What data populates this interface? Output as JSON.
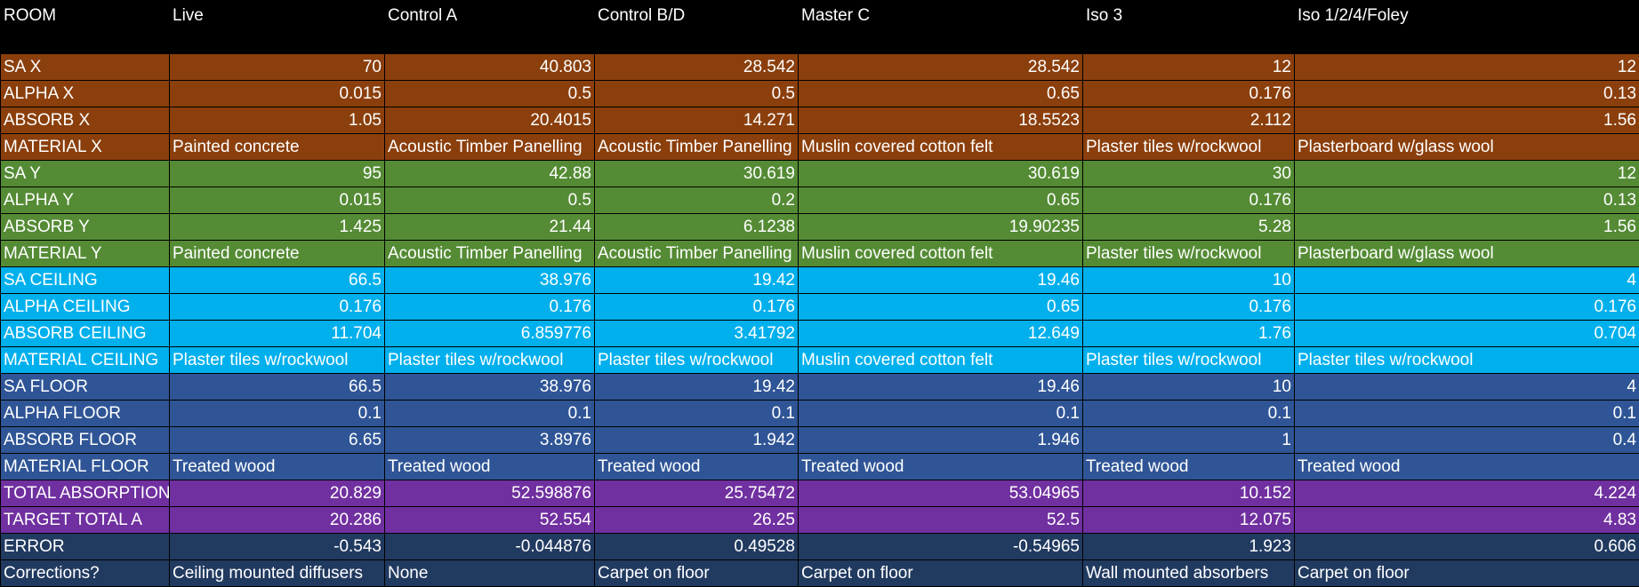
{
  "colors": {
    "header": "#000000",
    "x": "#8b3f0c",
    "y": "#548b34",
    "ceiling": "#00b0ed",
    "floor": "#2f5596",
    "total": "#7030a0",
    "error": "#213a60"
  },
  "header": [
    "ROOM",
    "Live",
    "Control A",
    "Control B/D",
    "Master C",
    "Iso 3",
    "Iso 1/2/4/Foley"
  ],
  "rows": [
    {
      "label": "SA X",
      "group": "x",
      "kind": "num",
      "cells": [
        "70",
        "40.803",
        "28.542",
        "28.542",
        "12",
        "12"
      ]
    },
    {
      "label": "ALPHA X",
      "group": "x",
      "kind": "num",
      "cells": [
        "0.015",
        "0.5",
        "0.5",
        "0.65",
        "0.176",
        "0.13"
      ]
    },
    {
      "label": "ABSORB X",
      "group": "x",
      "kind": "num",
      "cells": [
        "1.05",
        "20.4015",
        "14.271",
        "18.5523",
        "2.112",
        "1.56"
      ]
    },
    {
      "label": "MATERIAL X",
      "group": "x",
      "kind": "txt",
      "cells": [
        "Painted concrete",
        "Acoustic Timber Panelling",
        "Acoustic Timber Panelling",
        "Muslin covered cotton felt",
        "Plaster tiles w/rockwool",
        "Plasterboard w/glass wool"
      ]
    },
    {
      "label": "SA Y",
      "group": "y",
      "kind": "num",
      "cells": [
        "95",
        "42.88",
        "30.619",
        "30.619",
        "30",
        "12"
      ]
    },
    {
      "label": "ALPHA Y",
      "group": "y",
      "kind": "num",
      "cells": [
        "0.015",
        "0.5",
        "0.2",
        "0.65",
        "0.176",
        "0.13"
      ]
    },
    {
      "label": "ABSORB Y",
      "group": "y",
      "kind": "num",
      "cells": [
        "1.425",
        "21.44",
        "6.1238",
        "19.90235",
        "5.28",
        "1.56"
      ]
    },
    {
      "label": "MATERIAL Y",
      "group": "y",
      "kind": "txt",
      "cells": [
        "Painted concrete",
        "Acoustic Timber Panelling",
        "Acoustic Timber Panelling",
        "Muslin covered cotton felt",
        "Plaster tiles w/rockwool",
        "Plasterboard w/glass wool"
      ]
    },
    {
      "label": "SA CEILING",
      "group": "ceiling",
      "kind": "num",
      "cells": [
        "66.5",
        "38.976",
        "19.42",
        "19.46",
        "10",
        "4"
      ]
    },
    {
      "label": "ALPHA CEILING",
      "group": "ceiling",
      "kind": "num",
      "cells": [
        "0.176",
        "0.176",
        "0.176",
        "0.65",
        "0.176",
        "0.176"
      ]
    },
    {
      "label": "ABSORB CEILING",
      "group": "ceiling",
      "kind": "num",
      "cells": [
        "11.704",
        "6.859776",
        "3.41792",
        "12.649",
        "1.76",
        "0.704"
      ]
    },
    {
      "label": "MATERIAL CEILING",
      "group": "ceiling",
      "kind": "txt",
      "cells": [
        "Plaster tiles w/rockwool",
        "Plaster tiles w/rockwool",
        "Plaster tiles w/rockwool",
        "Muslin covered cotton felt",
        "Plaster tiles w/rockwool",
        "Plaster tiles w/rockwool"
      ]
    },
    {
      "label": "SA FLOOR",
      "group": "floor",
      "kind": "num",
      "cells": [
        "66.5",
        "38.976",
        "19.42",
        "19.46",
        "10",
        "4"
      ]
    },
    {
      "label": "ALPHA FLOOR",
      "group": "floor",
      "kind": "num",
      "cells": [
        "0.1",
        "0.1",
        "0.1",
        "0.1",
        "0.1",
        "0.1"
      ]
    },
    {
      "label": "ABSORB FLOOR",
      "group": "floor",
      "kind": "num",
      "cells": [
        "6.65",
        "3.8976",
        "1.942",
        "1.946",
        "1",
        "0.4"
      ]
    },
    {
      "label": "MATERIAL FLOOR",
      "group": "floor",
      "kind": "txt",
      "cells": [
        "Treated wood",
        "Treated wood",
        "Treated wood",
        "Treated wood",
        "Treated wood",
        "Treated wood"
      ]
    },
    {
      "label": "TOTAL ABSORPTION",
      "group": "total",
      "kind": "num",
      "cells": [
        "20.829",
        "52.598876",
        "25.75472",
        "53.04965",
        "10.152",
        "4.224"
      ]
    },
    {
      "label": "TARGET TOTAL A",
      "group": "total",
      "kind": "num",
      "cells": [
        "20.286",
        "52.554",
        "26.25",
        "52.5",
        "12.075",
        "4.83"
      ]
    },
    {
      "label": "ERROR",
      "group": "error",
      "kind": "num",
      "cells": [
        "-0.543",
        "-0.044876",
        "0.49528",
        "-0.54965",
        "1.923",
        "0.606"
      ]
    },
    {
      "label": "Corrections?",
      "group": "error",
      "kind": "txt",
      "cells": [
        "Ceiling mounted diffusers",
        "None",
        "Carpet on floor",
        "Carpet on floor",
        "Wall mounted absorbers",
        "Carpet on floor"
      ]
    }
  ]
}
